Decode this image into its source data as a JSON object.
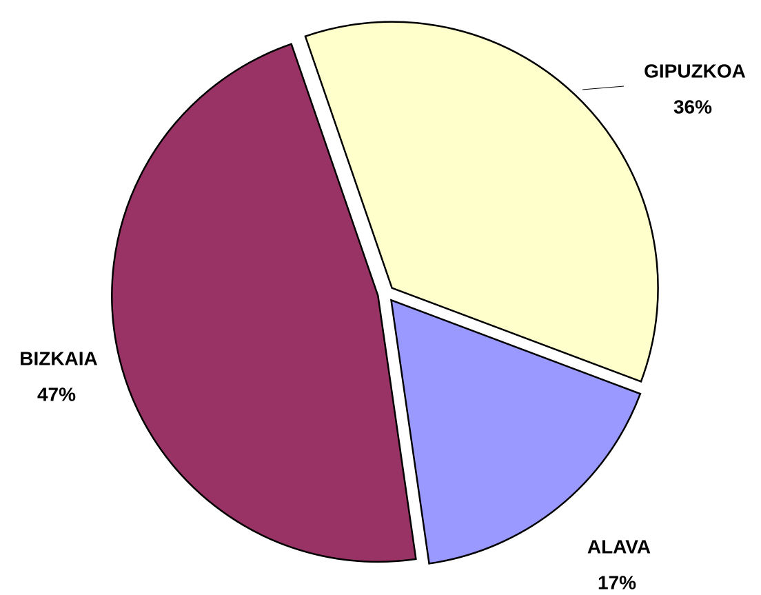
{
  "chart_data": {
    "type": "pie",
    "categories": [
      "GIPUZKOA",
      "ALAVA",
      "BIZKAIA"
    ],
    "values": [
      36,
      17,
      47
    ],
    "value_labels": [
      "36%",
      "17%",
      "47%"
    ],
    "colors": [
      "#ffffcc",
      "#9999ff",
      "#993366"
    ]
  }
}
